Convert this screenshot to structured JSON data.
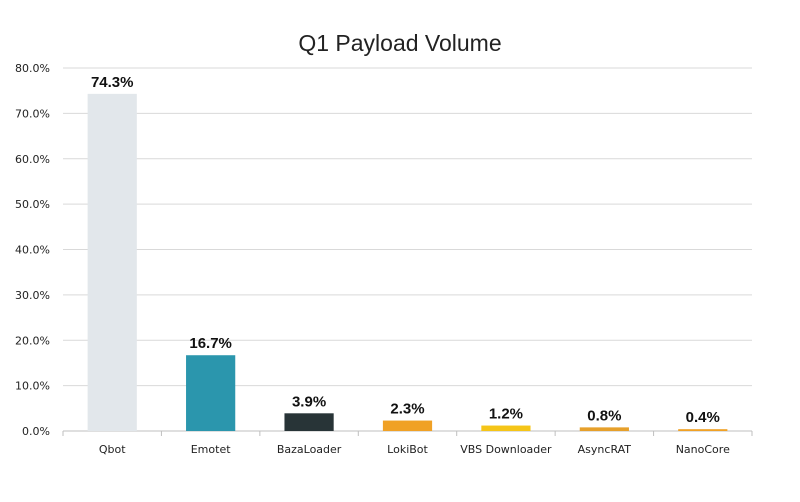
{
  "chart_data": {
    "type": "bar",
    "title": "Q1 Payload Volume",
    "xlabel": "",
    "ylabel": "",
    "categories": [
      "Qbot",
      "Emotet",
      "BazaLoader",
      "LokiBot",
      "VBS Downloader",
      "AsyncRAT",
      "NanoCore"
    ],
    "values": [
      74.3,
      16.7,
      3.9,
      2.3,
      1.2,
      0.8,
      0.4
    ],
    "data_labels": [
      "74.3%",
      "16.7%",
      "3.9%",
      "2.3%",
      "1.2%",
      "0.8%",
      "0.4%"
    ],
    "colors": [
      "#e2e7eb",
      "#2b96ad",
      "#283437",
      "#f0a125",
      "#f5c518",
      "#e6a02b",
      "#f0a125"
    ],
    "ylim": [
      0,
      80
    ],
    "yticks": [
      0,
      10,
      20,
      30,
      40,
      50,
      60,
      70,
      80
    ],
    "ytick_labels": [
      "0.0%",
      "10.0%",
      "20.0%",
      "30.0%",
      "40.0%",
      "50.0%",
      "60.0%",
      "70.0%",
      "80.0%"
    ],
    "grid": true,
    "legend": "none"
  }
}
